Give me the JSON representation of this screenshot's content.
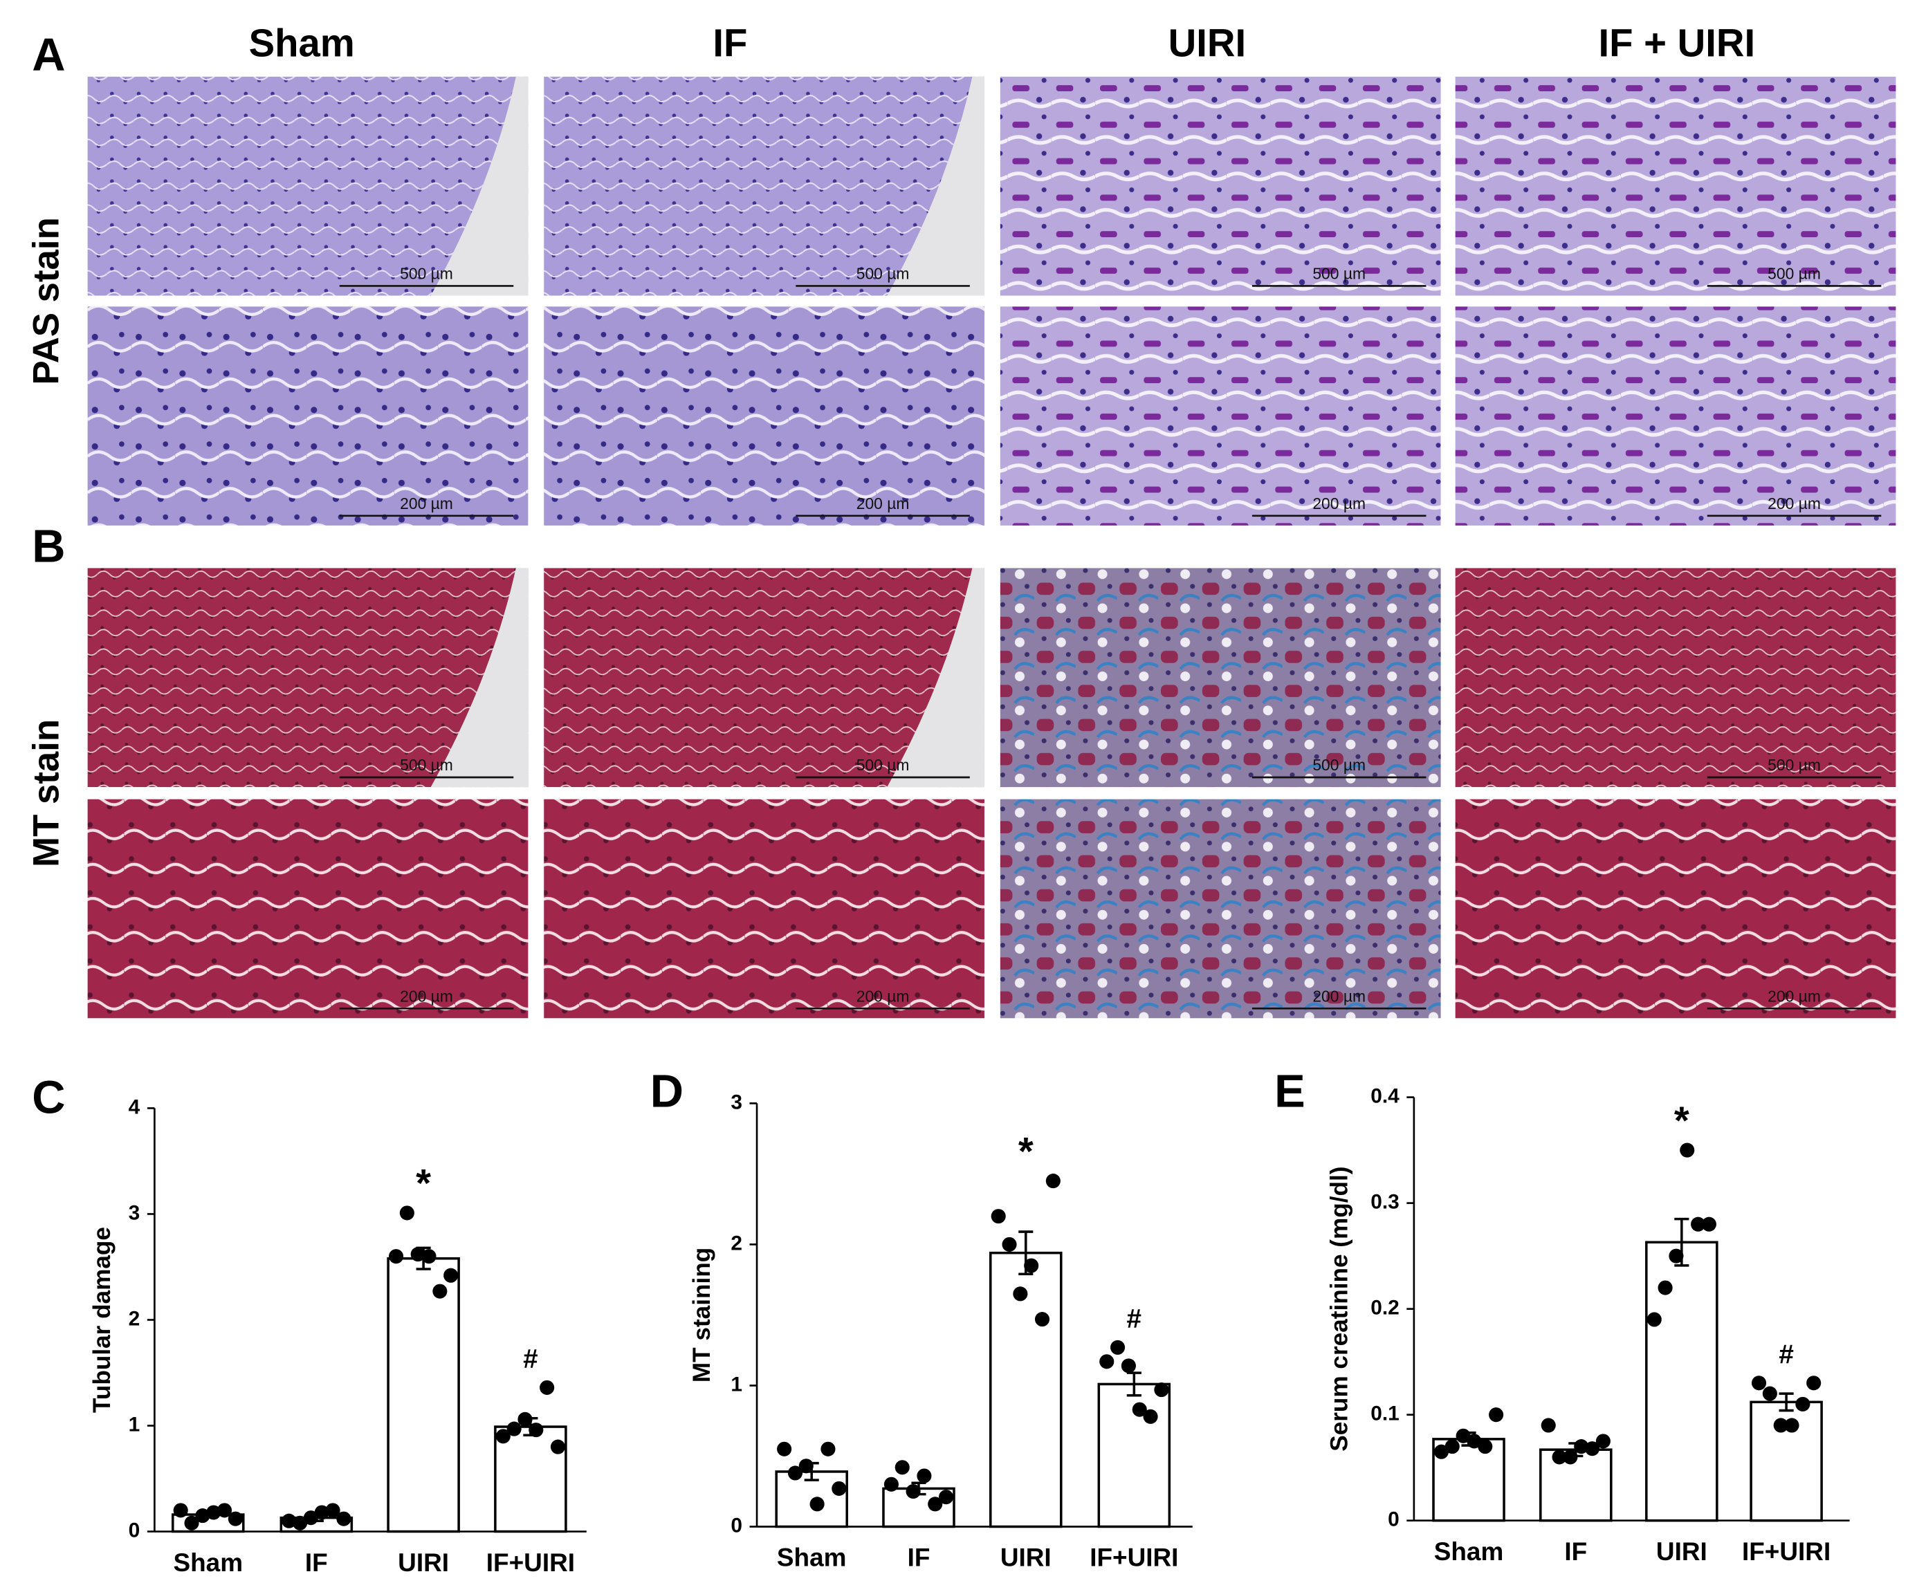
{
  "figure": {
    "columns": [
      "Sham",
      "IF",
      "UIRI",
      "IF + UIRI"
    ],
    "sections": [
      {
        "letter": "A",
        "stain": "PAS stain"
      },
      {
        "letter": "B",
        "stain": "MT stain"
      }
    ],
    "scale_bars": [
      "500 µm",
      "200 µm"
    ]
  },
  "chart_data": [
    {
      "type": "bar",
      "panel": "C",
      "ylabel": "Tubular damage",
      "color": "#ffffff",
      "point_color": "#000000",
      "categories": [
        "Sham",
        "IF",
        "UIRI",
        "IF+UIRI"
      ],
      "values": [
        0.16,
        0.13,
        2.58,
        0.99
      ],
      "errors": [
        0.02,
        0.03,
        0.1,
        0.08
      ],
      "points": [
        [
          0.2,
          0.08,
          0.15,
          0.18,
          0.2,
          0.12
        ],
        [
          0.1,
          0.08,
          0.13,
          0.18,
          0.2,
          0.12
        ],
        [
          2.6,
          3.01,
          2.62,
          2.6,
          2.27,
          2.42
        ],
        [
          0.9,
          0.97,
          1.06,
          0.96,
          1.36,
          0.8
        ]
      ],
      "annotations": [
        {
          "category": "UIRI",
          "text": "*"
        },
        {
          "category": "IF+UIRI",
          "text": "#"
        }
      ],
      "ylim": [
        0,
        4
      ],
      "yticks": [
        0,
        1,
        2,
        3,
        4
      ]
    },
    {
      "type": "bar",
      "panel": "D",
      "ylabel": "MT staining",
      "color": "#ffffff",
      "point_color": "#000000",
      "categories": [
        "Sham",
        "IF",
        "UIRI",
        "IF+UIRI"
      ],
      "values": [
        0.39,
        0.27,
        1.94,
        1.01
      ],
      "errors": [
        0.06,
        0.04,
        0.15,
        0.08
      ],
      "points": [
        [
          0.55,
          0.38,
          0.43,
          0.16,
          0.55,
          0.27
        ],
        [
          0.3,
          0.42,
          0.25,
          0.36,
          0.16,
          0.21
        ],
        [
          2.2,
          2.0,
          1.65,
          1.85,
          1.47,
          2.45
        ],
        [
          1.17,
          1.27,
          1.14,
          0.83,
          0.78,
          0.97
        ]
      ],
      "annotations": [
        {
          "category": "UIRI",
          "text": "*"
        },
        {
          "category": "IF+UIRI",
          "text": "#"
        }
      ],
      "ylim": [
        0,
        3
      ],
      "yticks": [
        0,
        1,
        2,
        3
      ]
    },
    {
      "type": "bar",
      "panel": "E",
      "ylabel": "Serum creatinine (mg/dl)",
      "color": "#ffffff",
      "point_color": "#000000",
      "categories": [
        "Sham",
        "IF",
        "UIRI",
        "IF+UIRI"
      ],
      "values": [
        0.077,
        0.067,
        0.263,
        0.112
      ],
      "errors": [
        0.006,
        0.006,
        0.022,
        0.008
      ],
      "points": [
        [
          0.065,
          0.07,
          0.08,
          0.075,
          0.07,
          0.1
        ],
        [
          0.09,
          0.06,
          0.06,
          0.07,
          0.068,
          0.075
        ],
        [
          0.19,
          0.22,
          0.25,
          0.35,
          0.28,
          0.28
        ],
        [
          0.13,
          0.12,
          0.09,
          0.09,
          0.11,
          0.13
        ]
      ],
      "annotations": [
        {
          "category": "UIRI",
          "text": "*"
        },
        {
          "category": "IF+UIRI",
          "text": "#"
        }
      ],
      "ylim": [
        0,
        0.4
      ],
      "yticks": [
        0,
        0.1,
        0.2,
        0.3,
        0.4
      ]
    }
  ]
}
